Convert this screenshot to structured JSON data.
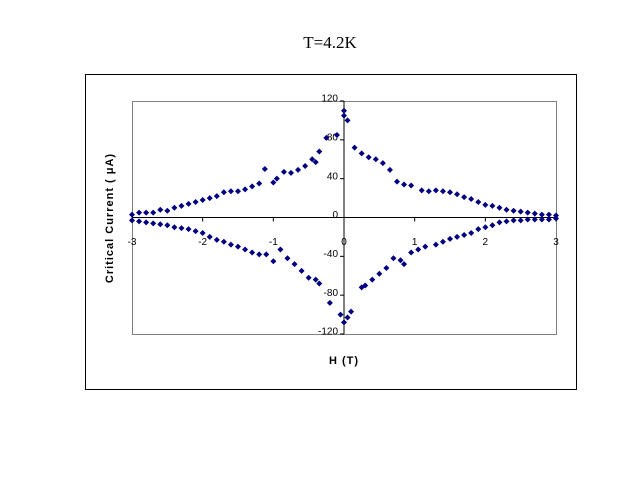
{
  "chart_data": {
    "type": "scatter",
    "title": "T=4.2K",
    "xlabel": "H (T)",
    "ylabel": "Critical Current (  μA)",
    "color": "#000080",
    "x": [
      -3,
      -2.9,
      -2.8,
      -2.7,
      -2.6,
      -2.5,
      -2.4,
      -2.3,
      -2.2,
      -2.1,
      -2.0,
      -1.9,
      -1.8,
      -1.7,
      -1.6,
      -1.5,
      -1.4,
      -1.3,
      -1.2,
      -1.12,
      -1.0,
      -0.95,
      -0.85,
      -0.75,
      -0.65,
      -0.55,
      -0.45,
      -0.4,
      -0.35,
      -0.25,
      -0.1,
      0,
      0,
      0.05,
      0.15,
      0.25,
      0.35,
      0.45,
      0.55,
      0.65,
      0.75,
      0.85,
      0.95,
      1.1,
      1.2,
      1.3,
      1.4,
      1.5,
      1.6,
      1.7,
      1.8,
      1.9,
      2.0,
      2.1,
      2.2,
      2.3,
      2.4,
      2.5,
      2.6,
      2.7,
      2.8,
      2.9,
      3.0,
      -3,
      -2.9,
      -2.8,
      -2.7,
      -2.6,
      -2.5,
      -2.4,
      -2.3,
      -2.2,
      -2.1,
      -2.0,
      -1.9,
      -1.8,
      -1.7,
      -1.6,
      -1.5,
      -1.4,
      -1.3,
      -1.2,
      -1.1,
      -1.0,
      -0.9,
      -0.8,
      -0.7,
      -0.6,
      -0.5,
      -0.4,
      -0.35,
      -0.2,
      -0.05,
      0,
      0.05,
      0.1,
      0.25,
      0.3,
      0.4,
      0.5,
      0.6,
      0.7,
      0.8,
      0.85,
      0.95,
      1.05,
      1.15,
      1.3,
      1.4,
      1.5,
      1.6,
      1.7,
      1.8,
      1.9,
      2.0,
      2.1,
      2.2,
      2.3,
      2.4,
      2.5,
      2.6,
      2.7,
      2.8,
      2.9,
      3.0
    ],
    "values": [
      3,
      5,
      5,
      5,
      8,
      7,
      10,
      12,
      14,
      16,
      18,
      20,
      22,
      26,
      27,
      27,
      29,
      32,
      35,
      50,
      36,
      40,
      47,
      46,
      49,
      53,
      60,
      57,
      68,
      82,
      85,
      105,
      110,
      100,
      72,
      66,
      62,
      60,
      56,
      49,
      37,
      34,
      33,
      28,
      27,
      28,
      27,
      26,
      24,
      21,
      19,
      16,
      13,
      12,
      10,
      8,
      7,
      6,
      5,
      4,
      3,
      3,
      2,
      -3,
      -4,
      -5,
      -6,
      -7,
      -8,
      -10,
      -11,
      -12,
      -14,
      -16,
      -20,
      -23,
      -25,
      -28,
      -30,
      -33,
      -36,
      -38,
      -38,
      -45,
      -33,
      -42,
      -48,
      -55,
      -62,
      -64,
      -68,
      -88,
      -100,
      -108,
      -103,
      -97,
      -72,
      -70,
      -64,
      -58,
      -52,
      -42,
      -44,
      -48,
      -36,
      -33,
      -30,
      -28,
      -25,
      -22,
      -20,
      -18,
      -16,
      -12,
      -10,
      -8,
      -5,
      -4,
      -3,
      -3,
      -2,
      -2,
      -2,
      -2,
      -1
    ],
    "xlim": [
      -3,
      3
    ],
    "ylim": [
      -120,
      120
    ],
    "xticks": [
      -3,
      -2,
      -1,
      0,
      1,
      2,
      3
    ],
    "yticks": [
      -120,
      -80,
      -40,
      0,
      40,
      80,
      120
    ]
  }
}
